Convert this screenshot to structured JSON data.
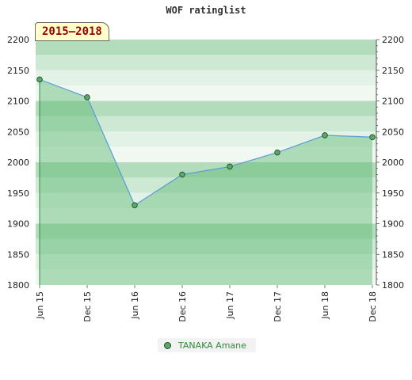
{
  "chart_data": {
    "type": "area",
    "title": "WOF ratinglist",
    "period_label": "2015–2018",
    "x": [
      "Jun 15",
      "Dec 15",
      "Jun 16",
      "Dec 16",
      "Jun 17",
      "Dec 17",
      "Jun 18",
      "Dec 18"
    ],
    "series": [
      {
        "name": "TANAKA Amane",
        "values": [
          2135,
          2106,
          1930,
          1980,
          1993,
          2016,
          2044,
          2041
        ]
      }
    ],
    "ylim": [
      1800,
      2200
    ],
    "yticks": [
      1800,
      1850,
      1900,
      1950,
      2000,
      2050,
      2100,
      2150,
      2200
    ],
    "y_axes": "left-and-right",
    "grid": "horizontal-bands",
    "legend_position": "bottom-center",
    "colors": {
      "line": "#5b9bd5",
      "fill": "#5cb870",
      "marker": "#5aa96a",
      "legend_text": "#2e8b3d",
      "badge_text": "#990000"
    }
  }
}
